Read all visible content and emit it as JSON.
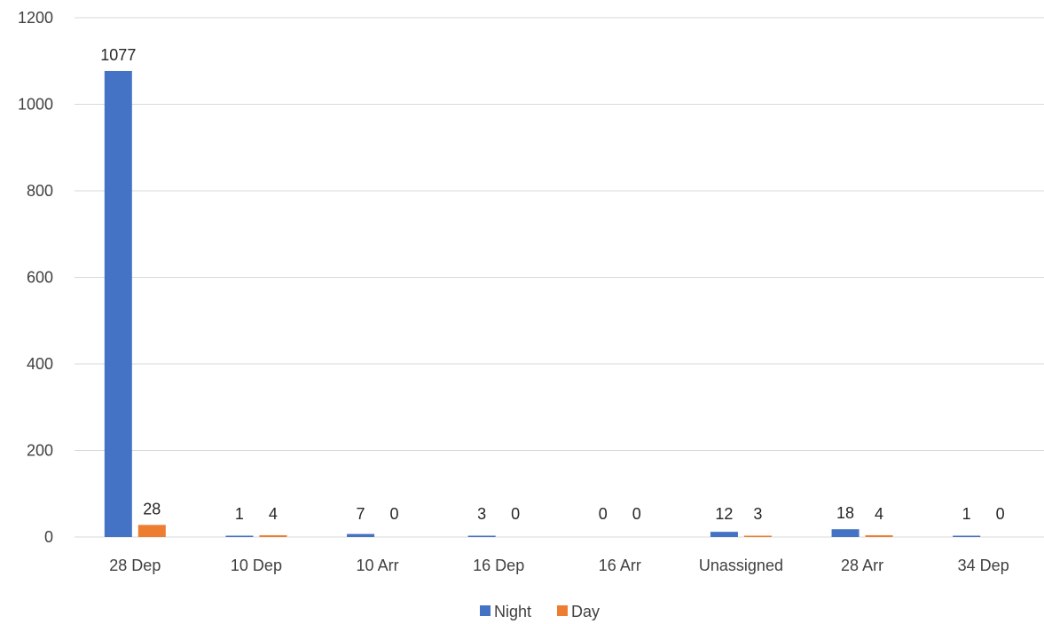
{
  "chart_data": {
    "type": "bar",
    "title": "",
    "xlabel": "",
    "ylabel": "",
    "categories": [
      "28 Dep",
      "10 Dep",
      "10 Arr",
      "16 Dep",
      "16 Arr",
      "Unassigned",
      "28 Arr",
      "34 Dep"
    ],
    "series": [
      {
        "name": "Night",
        "color": "#4472C4",
        "values": [
          1077,
          1,
          7,
          3,
          0,
          12,
          18,
          1
        ]
      },
      {
        "name": "Day",
        "color": "#ED7D31",
        "values": [
          28,
          4,
          0,
          0,
          0,
          3,
          4,
          0
        ]
      }
    ],
    "ylim": [
      0,
      1200
    ],
    "yticks": [
      0,
      200,
      400,
      600,
      800,
      1000,
      1200
    ],
    "grid": true,
    "gridline_color": "#D9D9D9",
    "legend_position": "bottom"
  }
}
